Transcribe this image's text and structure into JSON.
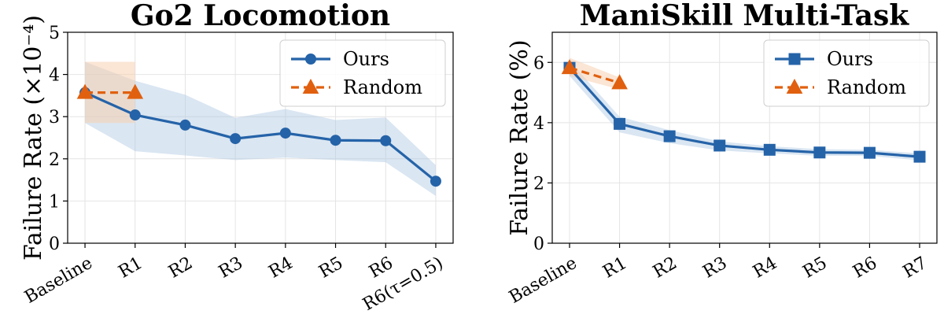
{
  "chart_data": [
    {
      "type": "line",
      "title": "Go2 Locomotion",
      "ylabel": "Failure Rate (×10⁻⁴)",
      "xlabel": "",
      "categories": [
        "Baseline",
        "R1",
        "R2",
        "R3",
        "R4",
        "R5",
        "R6",
        "R6(τ=0.5)"
      ],
      "ylim": [
        0,
        5
      ],
      "yticks": [
        "0",
        "1",
        "2",
        "3",
        "4",
        "5"
      ],
      "grid": true,
      "legend_position": "top-right",
      "series": [
        {
          "name": "Ours",
          "marker": "circle",
          "line_style": "solid",
          "color": "#2563a8",
          "band_color": "#aec7e3",
          "values": [
            3.57,
            3.04,
            2.8,
            2.48,
            2.61,
            2.44,
            2.43,
            1.47
          ],
          "band_low": [
            2.85,
            2.18,
            2.08,
            1.97,
            2.03,
            1.97,
            1.92,
            1.12
          ],
          "band_high": [
            4.3,
            3.85,
            3.52,
            2.97,
            3.18,
            2.92,
            2.98,
            1.85
          ]
        },
        {
          "name": "Random",
          "marker": "triangle",
          "line_style": "dashed",
          "color": "#e0600f",
          "band_color": "#f8cfb0",
          "values": [
            3.57,
            3.57,
            null,
            null,
            null,
            null,
            null,
            null
          ],
          "band_low": [
            2.85,
            2.85,
            null,
            null,
            null,
            null,
            null,
            null
          ],
          "band_high": [
            4.3,
            4.3,
            null,
            null,
            null,
            null,
            null,
            null
          ]
        }
      ]
    },
    {
      "type": "line",
      "title": "ManiSkill Multi-Task",
      "ylabel": "Failure Rate (%)",
      "xlabel": "",
      "categories": [
        "Baseline",
        "R1",
        "R2",
        "R3",
        "R4",
        "R5",
        "R6",
        "R7"
      ],
      "ylim": [
        0,
        7
      ],
      "yticks": [
        "0",
        "2",
        "4",
        "6"
      ],
      "grid": true,
      "legend_position": "top-right",
      "series": [
        {
          "name": "Ours",
          "marker": "square",
          "line_style": "solid",
          "color": "#2563a8",
          "band_color": "#aec7e3",
          "values": [
            5.82,
            3.96,
            3.55,
            3.24,
            3.1,
            3.01,
            3.0,
            2.87
          ],
          "band_low": [
            5.55,
            3.68,
            3.32,
            3.08,
            2.98,
            2.9,
            2.9,
            2.75
          ],
          "band_high": [
            6.05,
            4.2,
            3.75,
            3.38,
            3.22,
            3.12,
            3.1,
            2.98
          ]
        },
        {
          "name": "Random",
          "marker": "triangle",
          "line_style": "dashed",
          "color": "#e0600f",
          "band_color": "#f8cfb0",
          "values": [
            5.82,
            5.32,
            null,
            null,
            null,
            null,
            null,
            null
          ],
          "band_low": [
            5.55,
            5.1,
            null,
            null,
            null,
            null,
            null,
            null
          ],
          "band_high": [
            6.15,
            5.5,
            null,
            null,
            null,
            null,
            null,
            null
          ]
        }
      ]
    }
  ]
}
